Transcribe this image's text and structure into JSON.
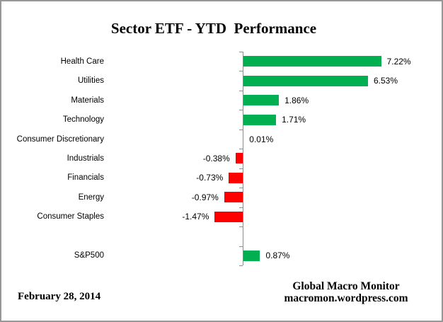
{
  "title": "Sector ETF - YTD  Performance",
  "footer": {
    "date": "February 28, 2014",
    "credit_line1": "Global Macro Monitor",
    "credit_line2": "macromon.wordpress.com"
  },
  "colors": {
    "positive": "#00B050",
    "negative": "#FF0000",
    "axis": "#8C8C8C",
    "border": "#979797"
  },
  "chart_data": {
    "type": "bar",
    "orientation": "horizontal",
    "title": "Sector ETF - YTD  Performance",
    "categories": [
      "Health Care",
      "Utilities",
      "Materials",
      "Technology",
      "Consumer Discretionary",
      "Industrials",
      "Financials",
      "Energy",
      "Consumer Staples",
      "",
      "S&P500"
    ],
    "values": [
      7.22,
      6.53,
      1.86,
      1.71,
      0.01,
      -0.38,
      -0.73,
      -0.97,
      -1.47,
      null,
      0.87
    ],
    "value_labels": [
      "7.22%",
      "6.53%",
      "1.86%",
      "1.71%",
      "0.01%",
      "-0.38%",
      "-0.73%",
      "-0.97%",
      "-1.47%",
      "",
      "0.87%"
    ],
    "xlabel": "",
    "ylabel": "",
    "xlim": [
      -1.47,
      7.22
    ],
    "baseline": "zero",
    "grid": false,
    "legend": false,
    "value_axis_labels_visible": false,
    "positive_color": "#00B050",
    "negative_color": "#FF0000"
  }
}
